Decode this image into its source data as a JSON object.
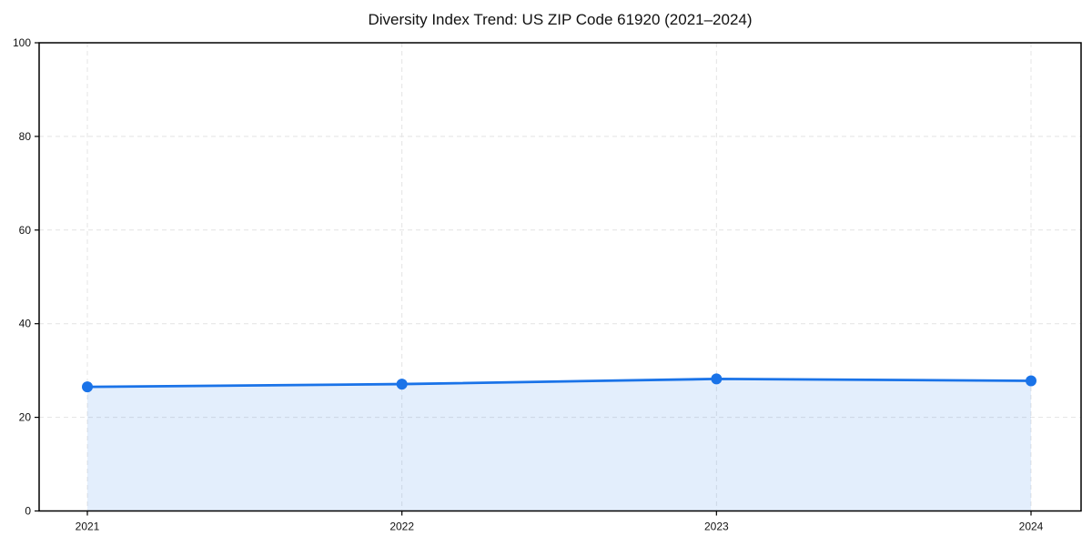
{
  "chart_data": {
    "type": "line",
    "title": "Diversity Index Trend: US ZIP Code 61920 (2021–2024)",
    "categories": [
      "2021",
      "2022",
      "2023",
      "2024"
    ],
    "series": [
      {
        "name": "Diversity Index",
        "values": [
          26.5,
          27.1,
          28.2,
          27.8
        ]
      }
    ],
    "xlabel": "",
    "ylabel": "",
    "ylim": [
      0,
      100
    ],
    "yticks": [
      0,
      20,
      40,
      60,
      80,
      100
    ],
    "grid": true,
    "grid_style": "dashed",
    "legend_position": "none",
    "marker": "circle",
    "area_fill": true,
    "colors": {
      "line": "#1a73e8",
      "marker": "#1a73e8",
      "area_fill": "rgba(26,115,232,0.12)",
      "grid": "#e4e4e4",
      "axis": "#000000",
      "tick_text": "#111111",
      "background": "#ffffff"
    }
  }
}
